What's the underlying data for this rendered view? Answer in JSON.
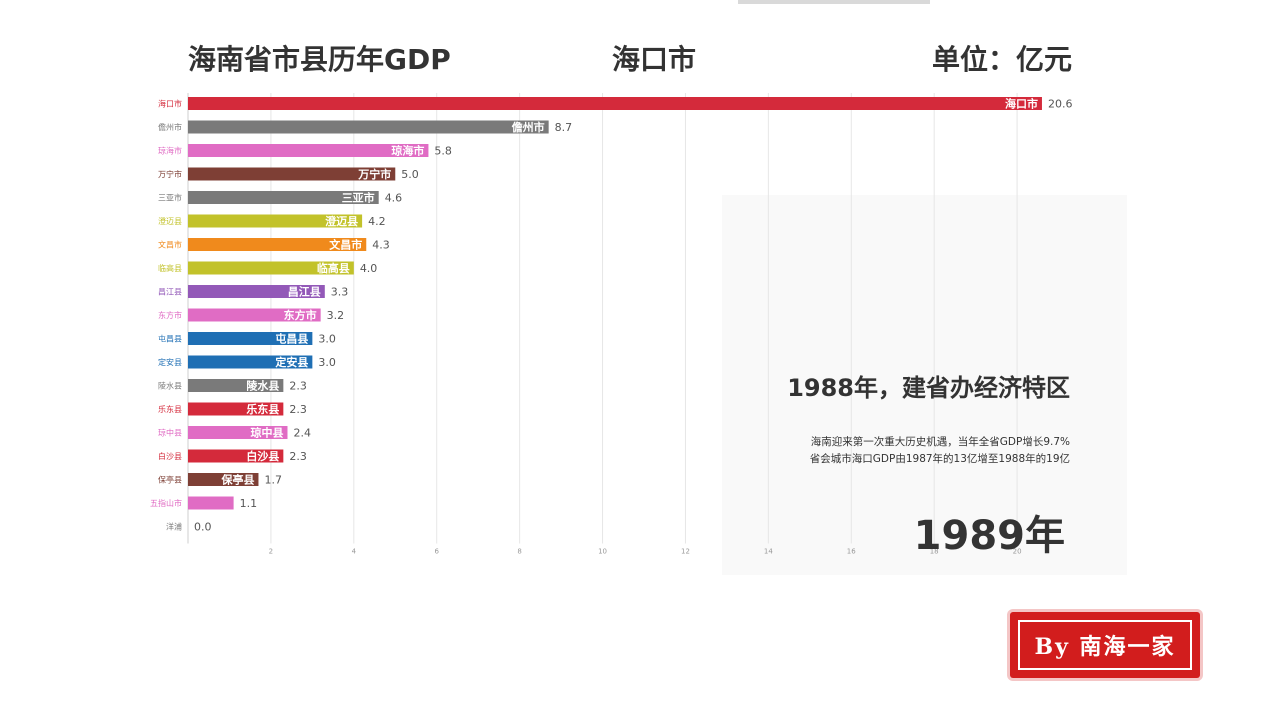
{
  "header": {
    "title": "海南省市县历年GDP",
    "focus": "海口市",
    "unit": "单位：亿元"
  },
  "event": {
    "title": "1988年，建省办经济特区",
    "desc_line1": "海南迎来第一次重大历史机遇，当年全省GDP增长9.7%",
    "desc_line2": "省会城市海口GDP由1987年的13亿增至1988年的19亿"
  },
  "year": "1989年",
  "stamp": {
    "text": "By 南海一家"
  },
  "chart_data": {
    "type": "bar",
    "orientation": "horizontal",
    "title": "海南省市县历年GDP",
    "xlabel": "",
    "ylabel": "",
    "xlim": [
      0,
      22
    ],
    "xticks": [
      "2",
      "4",
      "6",
      "8",
      "10",
      "12",
      "14",
      "16",
      "18",
      "20"
    ],
    "grid": true,
    "categories": [
      "海口市",
      "儋州市",
      "琼海市",
      "万宁市",
      "三亚市",
      "澄迈县",
      "文昌市",
      "临高县",
      "昌江县",
      "东方市",
      "屯昌县",
      "定安县",
      "陵水县",
      "乐东县",
      "琼中县",
      "白沙县",
      "保亭县",
      "五指山市",
      "洋浦"
    ],
    "values": [
      20.6,
      8.7,
      5.8,
      5.0,
      4.6,
      4.2,
      4.3,
      4.0,
      3.3,
      3.2,
      3.0,
      3.0,
      2.3,
      2.3,
      2.4,
      2.3,
      1.7,
      1.1,
      0.0
    ],
    "value_labels": [
      "20.6",
      "8.7",
      "5.8",
      "5.0",
      "4.6",
      "4.2",
      "4.3",
      "4.0",
      "3.3",
      "3.2",
      "3.0",
      "3.0",
      "2.3",
      "2.3",
      "2.4",
      "2.3",
      "1.7",
      "1.1",
      "0.0"
    ],
    "colors": [
      "#d42a3b",
      "#7a7a7a",
      "#e06cc4",
      "#7e3f35",
      "#7a7a7a",
      "#c2c22a",
      "#f08a1c",
      "#c2c22a",
      "#9359b8",
      "#e06cc4",
      "#1f6fb4",
      "#1f6fb4",
      "#7a7a7a",
      "#d42a3b",
      "#e06cc4",
      "#d42a3b",
      "#7e3f35",
      "#e06cc4",
      "#7a7a7a"
    ]
  }
}
